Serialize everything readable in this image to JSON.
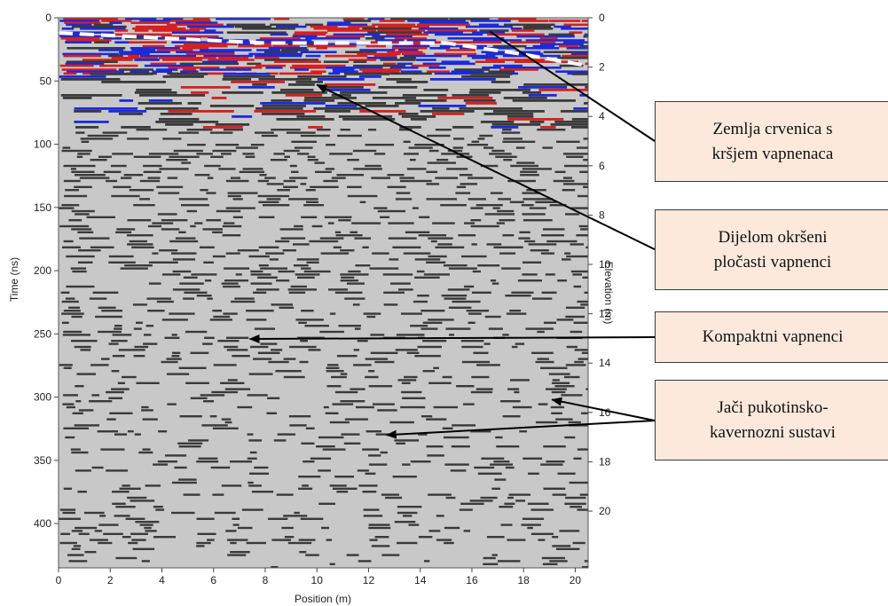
{
  "axes": {
    "x_label": "Position (m)",
    "y_left_label": "Time (ns)",
    "y_right_label": "Elevation (m)"
  },
  "chart_data": {
    "type": "heatmap",
    "xlabel": "Position (m)",
    "ylabel": "Time (ns)",
    "y2label": "Elevation (m)",
    "x_ticks": [
      0,
      2,
      4,
      6,
      8,
      10,
      12,
      14,
      16,
      18,
      20
    ],
    "y_ticks": [
      0,
      50,
      100,
      150,
      200,
      250,
      300,
      350,
      400
    ],
    "y2_ticks": [
      0,
      2,
      4,
      6,
      8,
      10,
      12,
      14,
      16,
      18,
      20
    ],
    "xlim": [
      0,
      20.5
    ],
    "ylim": [
      0,
      435
    ],
    "y2lim": [
      0,
      22.3
    ],
    "colors": {
      "background": "#c8c8c8",
      "reflector_dark": "#3a3a3a",
      "reflector_red": "#d42020",
      "reflector_blue": "#1c2ad8",
      "interpreted_boundary": "#ffffff"
    }
  },
  "annotations": [
    {
      "id": "soil",
      "lines": [
        "Zemlja crvenica s",
        "kršjem vapnenaca"
      ],
      "target": {
        "x": 16.7,
        "t": 11
      }
    },
    {
      "id": "platy",
      "lines": [
        "Dijelom okršeni",
        "pločasti vapnenci"
      ],
      "target": {
        "x": 10,
        "t": 53
      }
    },
    {
      "id": "compact",
      "lines": [
        "Kompaktni vapnenci"
      ],
      "target": {
        "x": 7.4,
        "t": 254
      }
    },
    {
      "id": "karst",
      "lines": [
        "Jači pukotinsko-",
        "kavernozni sustavi"
      ],
      "targets": [
        {
          "x": 19.1,
          "t": 302
        },
        {
          "x": 12.7,
          "t": 330
        }
      ]
    }
  ]
}
